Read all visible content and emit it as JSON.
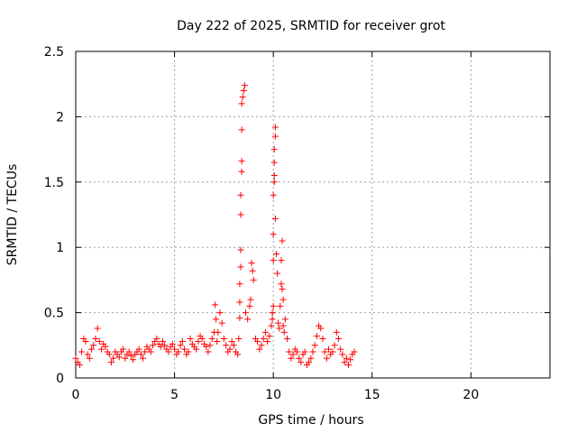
{
  "chart_data": {
    "type": "scatter",
    "title": "Day 222 of 2025, SRMTID for receiver grot",
    "xlabel": "GPS time / hours",
    "ylabel": "SRMTID / TECUs",
    "xlim": [
      0,
      24
    ],
    "ylim": [
      0,
      2.5
    ],
    "xticks": [
      0,
      5,
      10,
      15,
      20
    ],
    "yticks": [
      0,
      0.5,
      1,
      1.5,
      2,
      2.5
    ],
    "xtick_labels": [
      "0",
      "5",
      "10",
      "15",
      "20"
    ],
    "ytick_labels": [
      "0",
      "0.5",
      "1",
      "1.5",
      "2",
      "2.5"
    ],
    "grid": true,
    "marker": "+",
    "series": [
      {
        "name": "SRMTID",
        "color": "#ff0000",
        "x": [
          0.0,
          0.1,
          0.2,
          0.3,
          0.4,
          0.5,
          0.6,
          0.7,
          0.8,
          0.9,
          1.0,
          1.1,
          1.2,
          1.3,
          1.4,
          1.5,
          1.6,
          1.7,
          1.8,
          1.9,
          2.0,
          2.1,
          2.2,
          2.3,
          2.4,
          2.5,
          2.6,
          2.7,
          2.8,
          2.9,
          3.0,
          3.1,
          3.2,
          3.3,
          3.4,
          3.5,
          3.6,
          3.7,
          3.8,
          3.9,
          4.0,
          4.1,
          4.2,
          4.3,
          4.4,
          4.5,
          4.6,
          4.7,
          4.8,
          4.9,
          5.0,
          5.1,
          5.2,
          5.3,
          5.4,
          5.5,
          5.6,
          5.7,
          5.8,
          5.9,
          6.0,
          6.1,
          6.2,
          6.3,
          6.4,
          6.5,
          6.6,
          6.7,
          6.8,
          6.9,
          7.0,
          7.05,
          7.1,
          7.15,
          7.2,
          7.3,
          7.4,
          7.5,
          7.6,
          7.7,
          7.8,
          7.9,
          8.0,
          8.1,
          8.2,
          8.25,
          8.3,
          8.3,
          8.3,
          8.35,
          8.35,
          8.35,
          8.35,
          8.4,
          8.4,
          8.4,
          8.4,
          8.45,
          8.5,
          8.55,
          8.6,
          8.7,
          8.8,
          8.85,
          8.9,
          8.95,
          9.0,
          9.1,
          9.2,
          9.3,
          9.4,
          9.5,
          9.6,
          9.7,
          9.8,
          9.9,
          9.95,
          9.95,
          10.0,
          10.0,
          10.0,
          10.0,
          10.05,
          10.05,
          10.05,
          10.05,
          10.1,
          10.1,
          10.1,
          10.15,
          10.2,
          10.25,
          10.3,
          10.35,
          10.4,
          10.4,
          10.45,
          10.45,
          10.5,
          10.5,
          10.55,
          10.6,
          10.7,
          10.8,
          10.9,
          11.0,
          11.1,
          11.2,
          11.3,
          11.4,
          11.5,
          11.6,
          11.7,
          11.8,
          11.9,
          12.0,
          12.1,
          12.2,
          12.3,
          12.4,
          12.5,
          12.6,
          12.7,
          12.8,
          12.9,
          13.0,
          13.1,
          13.2,
          13.3,
          13.4,
          13.5,
          13.6,
          13.7,
          13.8,
          13.9,
          14.0,
          14.1
        ],
        "y": [
          0.15,
          0.12,
          0.1,
          0.2,
          0.3,
          0.28,
          0.18,
          0.15,
          0.22,
          0.25,
          0.3,
          0.38,
          0.28,
          0.22,
          0.26,
          0.24,
          0.2,
          0.18,
          0.12,
          0.15,
          0.2,
          0.18,
          0.16,
          0.2,
          0.22,
          0.15,
          0.18,
          0.2,
          0.17,
          0.14,
          0.18,
          0.2,
          0.22,
          0.18,
          0.15,
          0.2,
          0.24,
          0.22,
          0.2,
          0.25,
          0.28,
          0.3,
          0.26,
          0.24,
          0.28,
          0.25,
          0.22,
          0.2,
          0.24,
          0.26,
          0.22,
          0.18,
          0.2,
          0.25,
          0.28,
          0.22,
          0.18,
          0.2,
          0.3,
          0.26,
          0.24,
          0.22,
          0.28,
          0.32,
          0.3,
          0.26,
          0.24,
          0.2,
          0.25,
          0.3,
          0.35,
          0.56,
          0.45,
          0.28,
          0.35,
          0.5,
          0.42,
          0.3,
          0.25,
          0.2,
          0.22,
          0.28,
          0.25,
          0.2,
          0.18,
          0.3,
          0.46,
          0.58,
          0.72,
          0.85,
          0.98,
          1.25,
          1.4,
          1.58,
          1.66,
          1.9,
          2.1,
          2.15,
          2.2,
          2.24,
          0.5,
          0.45,
          0.55,
          0.6,
          0.88,
          0.82,
          0.75,
          0.3,
          0.28,
          0.22,
          0.25,
          0.3,
          0.35,
          0.28,
          0.32,
          0.4,
          0.5,
          0.45,
          0.55,
          0.9,
          1.1,
          1.4,
          1.5,
          1.55,
          1.65,
          1.75,
          1.85,
          1.92,
          1.22,
          0.95,
          0.8,
          0.42,
          0.38,
          0.55,
          0.72,
          0.9,
          1.05,
          0.68,
          0.6,
          0.4,
          0.35,
          0.45,
          0.3,
          0.2,
          0.15,
          0.18,
          0.22,
          0.2,
          0.15,
          0.12,
          0.18,
          0.2,
          0.1,
          0.12,
          0.15,
          0.2,
          0.25,
          0.32,
          0.4,
          0.38,
          0.3,
          0.2,
          0.15,
          0.22,
          0.18,
          0.2,
          0.25,
          0.35,
          0.3,
          0.22,
          0.18,
          0.12,
          0.15,
          0.1,
          0.14,
          0.18,
          0.2
        ]
      }
    ]
  }
}
